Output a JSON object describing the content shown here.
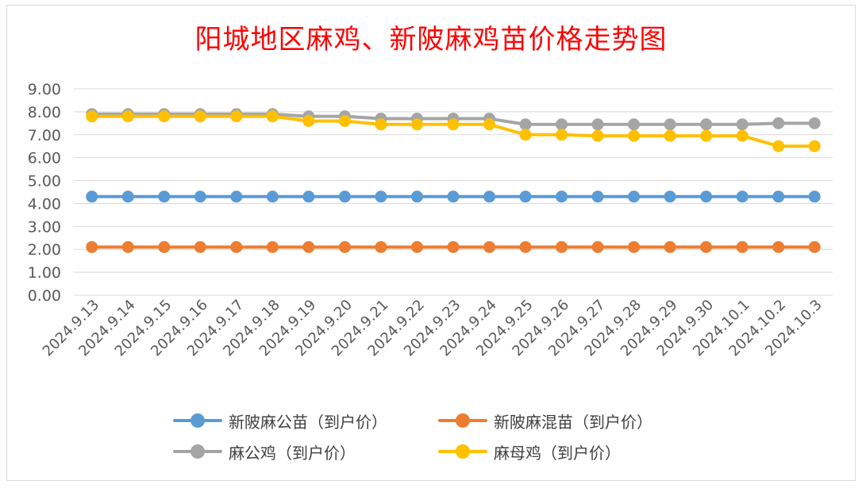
{
  "chart_data": {
    "type": "line",
    "title": "阳城地区麻鸡、新陂麻鸡苗价格走势图",
    "title_color": "#ff0000",
    "categories": [
      "2024.9.13",
      "2024.9.14",
      "2024.9.15",
      "2024.9.16",
      "2024.9.17",
      "2024.9.18",
      "2024.9.19",
      "2024.9.20",
      "2024.9.21",
      "2024.9.22",
      "2024.9.23",
      "2024.9.24",
      "2024.9.25",
      "2024.9.26",
      "2024.9.27",
      "2024.9.28",
      "2024.9.29",
      "2024.9.30",
      "2024.10.1",
      "2024.10.2",
      "2024.10.3"
    ],
    "ylim": [
      0,
      9
    ],
    "yticks": [
      "0.00",
      "1.00",
      "2.00",
      "3.00",
      "4.00",
      "5.00",
      "6.00",
      "7.00",
      "8.00",
      "9.00"
    ],
    "grid": true,
    "legend_position": "bottom",
    "series": [
      {
        "name": "新陂麻公苗（到户价）",
        "color": "#5b9bd5",
        "values": [
          4.3,
          4.3,
          4.3,
          4.3,
          4.3,
          4.3,
          4.3,
          4.3,
          4.3,
          4.3,
          4.3,
          4.3,
          4.3,
          4.3,
          4.3,
          4.3,
          4.3,
          4.3,
          4.3,
          4.3,
          4.3
        ]
      },
      {
        "name": "新陂麻混苗（到户价）",
        "color": "#ed7d31",
        "values": [
          2.1,
          2.1,
          2.1,
          2.1,
          2.1,
          2.1,
          2.1,
          2.1,
          2.1,
          2.1,
          2.1,
          2.1,
          2.1,
          2.1,
          2.1,
          2.1,
          2.1,
          2.1,
          2.1,
          2.1,
          2.1
        ]
      },
      {
        "name": "麻公鸡（到户价）",
        "color": "#a5a5a5",
        "values": [
          7.9,
          7.9,
          7.9,
          7.9,
          7.9,
          7.9,
          7.8,
          7.8,
          7.7,
          7.7,
          7.7,
          7.7,
          7.45,
          7.45,
          7.45,
          7.45,
          7.45,
          7.45,
          7.45,
          7.5,
          7.5
        ]
      },
      {
        "name": "麻母鸡（到户价）",
        "color": "#ffc000",
        "values": [
          7.8,
          7.8,
          7.8,
          7.8,
          7.8,
          7.8,
          7.6,
          7.6,
          7.45,
          7.45,
          7.45,
          7.45,
          7.0,
          7.0,
          6.95,
          6.95,
          6.95,
          6.95,
          6.95,
          6.5,
          6.5
        ]
      }
    ]
  }
}
